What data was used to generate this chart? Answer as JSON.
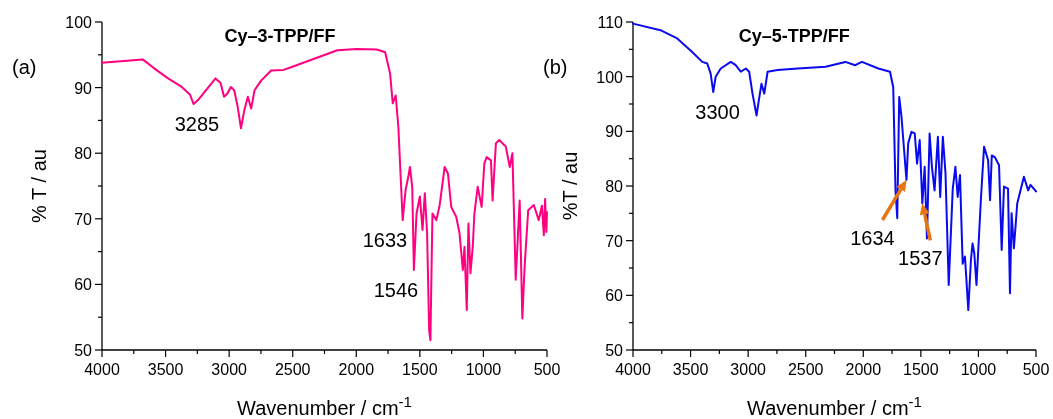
{
  "chart_data": [
    {
      "type": "line",
      "title": "Cy–3-TPP/FF",
      "xlabel": "Wavenumber / cm$^{-1}$",
      "ylabel": "% T / au",
      "color": "#ff0080",
      "xlim": [
        4000,
        500
      ],
      "ylim": [
        50,
        100
      ],
      "xticks": [
        4000,
        {
          "value": 3750,
          "label": null
        },
        3500,
        {
          "value": 3250,
          "label": null
        },
        3000,
        {
          "value": 2750,
          "label": null
        },
        2500,
        {
          "value": 2250,
          "label": null
        },
        2000,
        {
          "value": 1750,
          "label": null
        },
        1500,
        {
          "value": 1250,
          "label": null
        },
        1000,
        {
          "value": 750,
          "label": null
        },
        500
      ],
      "yticks": [
        50,
        {
          "value": 55,
          "label": null
        },
        60,
        {
          "value": 65,
          "label": null
        },
        70,
        {
          "value": 75,
          "label": null
        },
        80,
        {
          "value": 85,
          "label": null
        },
        90,
        {
          "value": 95,
          "label": null
        },
        100
      ],
      "x": [
        4000,
        3680,
        3587,
        3480,
        3373,
        3307,
        3280,
        3240,
        3107,
        3067,
        3040,
        3013,
        2987,
        2960,
        2933,
        2907,
        2880,
        2853,
        2827,
        2800,
        2747,
        2669,
        2573,
        2513,
        2331,
        2149,
        1994,
        1838,
        1773,
        1734,
        1713,
        1690,
        1669,
        1635,
        1612,
        1591,
        1578,
        1560,
        1547,
        1526,
        1500,
        1479,
        1461,
        1443,
        1427,
        1417,
        1401,
        1370,
        1344,
        1305,
        1279,
        1253,
        1214,
        1188,
        1162,
        1149,
        1131,
        1118,
        1102,
        1084,
        1071,
        1045,
        1014,
        993,
        975,
        941,
        928,
        902,
        876,
        824,
        793,
        772,
        746,
        715,
        694,
        676,
        648,
        604,
        565,
        540,
        525,
        515,
        505,
        500
      ],
      "values": [
        93.8,
        94.3,
        92.9,
        91.4,
        90.1,
        88.9,
        87.5,
        88.2,
        91.4,
        90.7,
        88.6,
        89.1,
        90.1,
        89.6,
        87.1,
        83.8,
        86.6,
        88.6,
        86.8,
        89.6,
        91.1,
        92.6,
        92.7,
        93.1,
        94.4,
        95.7,
        95.9,
        95.8,
        95.4,
        92.1,
        87.6,
        88.8,
        84.0,
        69.8,
        74.4,
        76.4,
        77.9,
        74.9,
        62.2,
        70.8,
        73.4,
        68.3,
        73.9,
        67.8,
        53.0,
        51.5,
        70.8,
        69.8,
        72.1,
        77.9,
        76.9,
        71.8,
        70.3,
        67.8,
        62.2,
        65.7,
        56.1,
        69.3,
        61.7,
        65.7,
        70.8,
        74.9,
        71.8,
        78.4,
        79.4,
        78.9,
        72.8,
        81.5,
        82.0,
        81.0,
        77.9,
        80.0,
        60.7,
        72.8,
        54.8,
        62.7,
        71.3,
        72.1,
        69.8,
        72.0,
        67.5,
        73.0,
        68.0,
        71.0
      ],
      "annotations": [
        "(a)",
        {
          "text": "3285",
          "x": 3285,
          "y": 87.5
        },
        {
          "text": "1633",
          "x": 1633,
          "y": 69.8
        },
        {
          "text": "1546",
          "x": 1546,
          "y": 62.2
        }
      ]
    },
    {
      "type": "line",
      "title": "Cy–5-TPP/FF",
      "xlabel": "Wavenumber / cm$^{-1}$",
      "ylabel": "%T / au",
      "color": "#0a0af0",
      "xlim": [
        4000,
        500
      ],
      "ylim": [
        50,
        110
      ],
      "xticks": [
        4000,
        {
          "value": 3750,
          "label": null
        },
        3500,
        {
          "value": 3250,
          "label": null
        },
        3000,
        {
          "value": 2750,
          "label": null
        },
        2500,
        {
          "value": 2250,
          "label": null
        },
        2000,
        {
          "value": 1750,
          "label": null
        },
        1500,
        {
          "value": 1250,
          "label": null
        },
        1000,
        {
          "value": 750,
          "label": null
        },
        500
      ],
      "yticks": [
        50,
        {
          "value": 55,
          "label": null
        },
        60,
        {
          "value": 65,
          "label": null
        },
        70,
        {
          "value": 75,
          "label": null
        },
        80,
        {
          "value": 85,
          "label": null
        },
        90,
        {
          "value": 95,
          "label": null
        },
        100,
        {
          "value": 105,
          "label": null
        },
        110
      ],
      "x": [
        4000,
        3762,
        3616,
        3500,
        3398,
        3355,
        3326,
        3303,
        3282,
        3238,
        3151,
        3108,
        3064,
        3020,
        2991,
        2962,
        2927,
        2907,
        2884,
        2860,
        2831,
        2744,
        2570,
        2328,
        2156,
        2070,
        2012,
        1869,
        1768,
        1740,
        1720,
        1705,
        1688,
        1668,
        1625,
        1610,
        1582,
        1553,
        1533,
        1510,
        1487,
        1467,
        1447,
        1424,
        1404,
        1381,
        1352,
        1332,
        1309,
        1286,
        1258,
        1223,
        1200,
        1180,
        1160,
        1137,
        1117,
        1088,
        1065,
        1051,
        1036,
        1017,
        979,
        951,
        916,
        899,
        884,
        858,
        821,
        798,
        778,
        743,
        726,
        712,
        692,
        663,
        605,
        568,
        548,
        519,
        500
      ],
      "values": [
        109.7,
        108.5,
        107.0,
        104.8,
        102.7,
        102.4,
        100.6,
        97.2,
        100.0,
        101.5,
        102.7,
        102.1,
        100.9,
        101.5,
        100.9,
        96.9,
        92.9,
        95.7,
        98.7,
        96.9,
        100.9,
        101.2,
        101.5,
        101.8,
        102.7,
        102.1,
        102.7,
        101.5,
        100.9,
        98.1,
        79.2,
        74.1,
        96.3,
        92.6,
        81.1,
        87.8,
        89.9,
        89.6,
        84.1,
        88.4,
        76.8,
        83.5,
        70.4,
        89.6,
        83.5,
        79.2,
        89.0,
        78.0,
        89.0,
        82.3,
        61.9,
        79.5,
        83.5,
        78.0,
        82.0,
        65.8,
        67.1,
        57.3,
        66.5,
        69.5,
        67.7,
        61.9,
        77.4,
        87.2,
        84.7,
        77.4,
        85.6,
        85.3,
        83.8,
        68.3,
        79.9,
        79.5,
        60.4,
        75.0,
        68.6,
        76.8,
        81.7,
        79.2,
        80.2,
        79.5,
        79.0
      ],
      "annotations": [
        "(b)",
        {
          "text": "3300",
          "x": 3300,
          "y": 97.2
        },
        {
          "text": "1634",
          "x": 1625,
          "y": 81.1
        },
        {
          "text": "1537",
          "x": 1487,
          "y": 76.8
        }
      ]
    }
  ]
}
